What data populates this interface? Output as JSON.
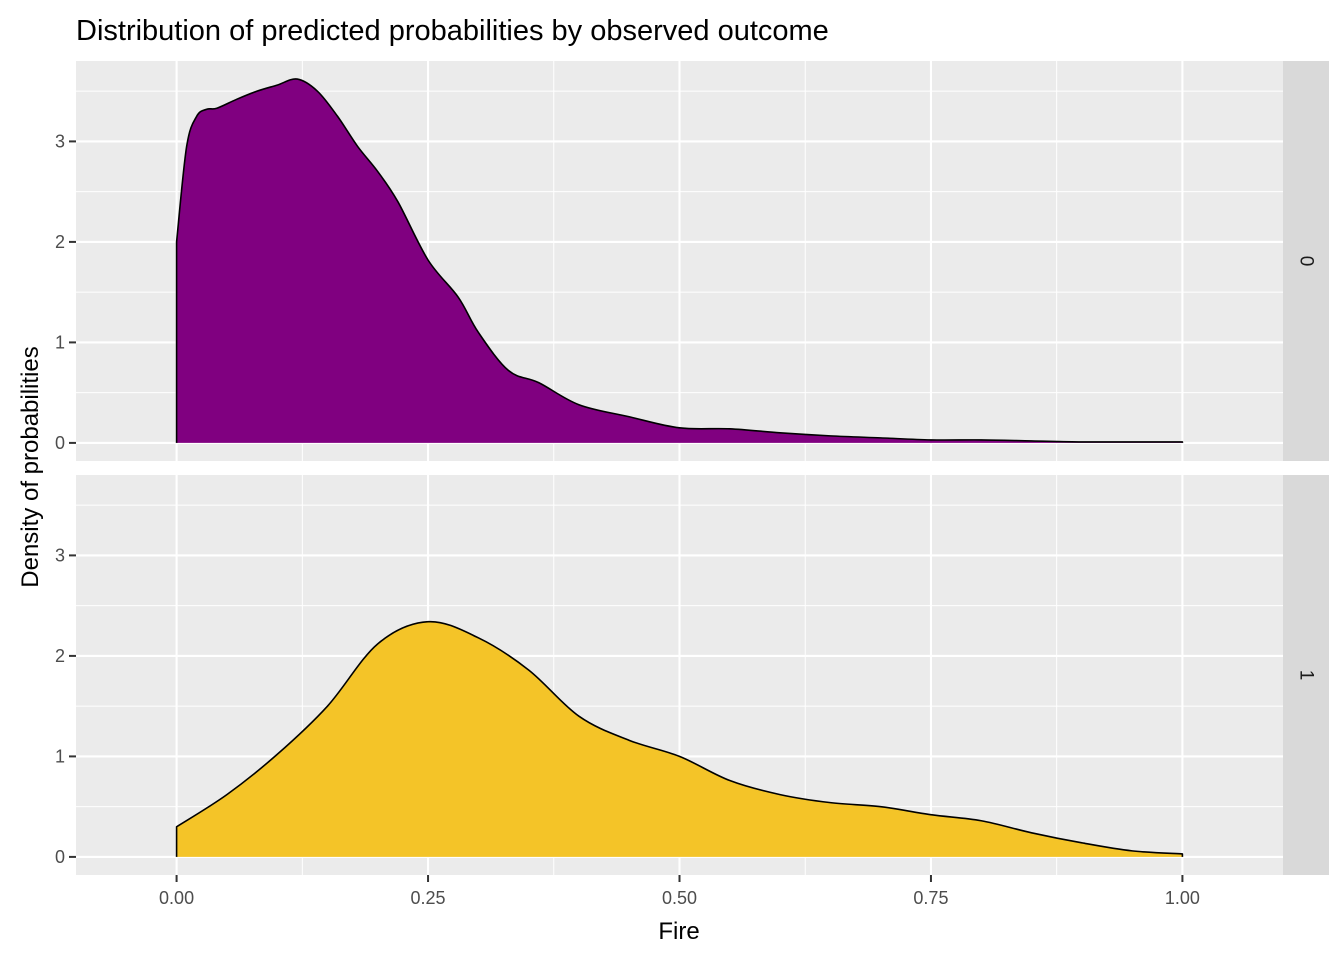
{
  "chart_data": {
    "type": "area",
    "title": "Distribution of predicted probabilities by observed outcome",
    "xlabel": "Fire",
    "ylabel": "Density of probabilities",
    "xlim": [
      -0.1,
      1.1
    ],
    "ylim": [
      -0.18,
      3.8
    ],
    "x_ticks": [
      0.0,
      0.25,
      0.5,
      0.75,
      1.0
    ],
    "x_tick_labels": [
      "0.00",
      "0.25",
      "0.50",
      "0.75",
      "1.00"
    ],
    "y_ticks": [
      0,
      1,
      2,
      3
    ],
    "y_tick_labels": [
      "0",
      "1",
      "2",
      "3"
    ],
    "grid": true,
    "facet": "rows",
    "panels": [
      {
        "strip_label": "0",
        "fill": "#800080",
        "x": [
          0.0,
          0.01,
          0.02,
          0.03,
          0.04,
          0.06,
          0.08,
          0.1,
          0.12,
          0.14,
          0.16,
          0.18,
          0.2,
          0.22,
          0.25,
          0.28,
          0.3,
          0.33,
          0.36,
          0.4,
          0.45,
          0.5,
          0.55,
          0.6,
          0.65,
          0.7,
          0.75,
          0.8,
          0.85,
          0.9,
          0.95,
          1.0
        ],
        "y": [
          2.0,
          2.95,
          3.25,
          3.32,
          3.33,
          3.42,
          3.5,
          3.56,
          3.62,
          3.5,
          3.25,
          2.95,
          2.7,
          2.4,
          1.82,
          1.45,
          1.1,
          0.72,
          0.6,
          0.38,
          0.26,
          0.15,
          0.14,
          0.1,
          0.07,
          0.05,
          0.03,
          0.03,
          0.02,
          0.01,
          0.01,
          0.01
        ]
      },
      {
        "strip_label": "1",
        "fill": "#F4C428",
        "x": [
          0.0,
          0.05,
          0.1,
          0.15,
          0.2,
          0.25,
          0.3,
          0.35,
          0.4,
          0.45,
          0.5,
          0.55,
          0.6,
          0.65,
          0.7,
          0.75,
          0.8,
          0.85,
          0.9,
          0.95,
          1.0
        ],
        "y": [
          0.3,
          0.62,
          1.02,
          1.5,
          2.12,
          2.34,
          2.18,
          1.86,
          1.4,
          1.16,
          1.0,
          0.76,
          0.62,
          0.54,
          0.5,
          0.42,
          0.36,
          0.24,
          0.14,
          0.06,
          0.03
        ]
      }
    ]
  }
}
